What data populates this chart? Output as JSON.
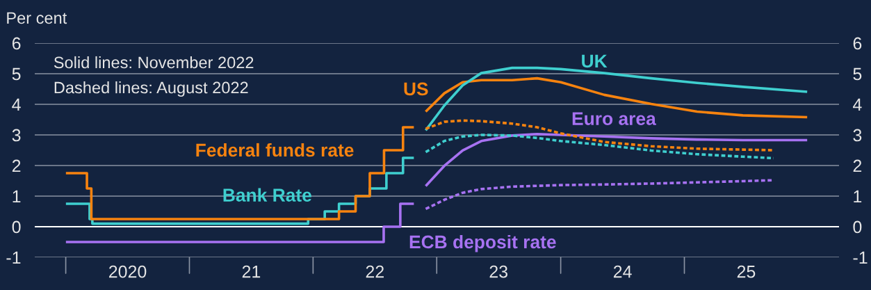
{
  "chart_data": {
    "type": "line",
    "ylabel": "Per cent",
    "annotations": [
      "Solid lines: November 2022",
      "Dashed lines: August 2022"
    ],
    "xlim": [
      "2019-10-01",
      "2026-04-01"
    ],
    "ylim": [
      -1,
      6
    ],
    "y2lim": [
      -1,
      6
    ],
    "xticks": [
      {
        "value": "2020-07-01",
        "label": "2020"
      },
      {
        "value": "2021-07-01",
        "label": "21"
      },
      {
        "value": "2022-07-01",
        "label": "22"
      },
      {
        "value": "2023-07-01",
        "label": "23"
      },
      {
        "value": "2024-07-01",
        "label": "24"
      },
      {
        "value": "2025-07-01",
        "label": "25"
      }
    ],
    "yticks": [
      -1,
      0,
      1,
      2,
      3,
      4,
      5,
      6
    ],
    "y2ticks": [
      -1,
      0,
      1,
      2,
      3,
      4,
      5,
      6
    ],
    "grid": "y",
    "legend": false,
    "ref_lines": [
      {
        "axis": "y",
        "value": 0,
        "color": "#ffffff"
      }
    ],
    "series": [
      {
        "name": "Bank Rate",
        "type": "step",
        "color": "#3fcfcf",
        "line_style": "solid",
        "x": [
          "2020-01-01",
          "2020-03-11",
          "2020-03-19",
          "2021-12-16",
          "2022-02-03",
          "2022-03-17",
          "2022-05-05",
          "2022-06-16",
          "2022-08-04",
          "2022-09-22",
          "2022-10-24"
        ],
        "values": [
          0.75,
          0.25,
          0.1,
          0.25,
          0.5,
          0.75,
          1.0,
          1.25,
          1.75,
          2.25,
          2.25
        ]
      },
      {
        "name": "Federal funds rate",
        "type": "step",
        "color": "#f7830f",
        "line_style": "solid",
        "x": [
          "2020-01-01",
          "2020-03-03",
          "2020-03-16",
          "2022-03-17",
          "2022-05-05",
          "2022-06-16",
          "2022-07-28",
          "2022-09-22",
          "2022-10-24"
        ],
        "values": [
          1.75,
          1.25,
          0.25,
          0.5,
          1.0,
          1.75,
          2.5,
          3.25,
          3.25
        ]
      },
      {
        "name": "ECB deposit rate",
        "type": "step",
        "color": "#a772f2",
        "line_style": "solid",
        "x": [
          "2020-01-01",
          "2022-07-27",
          "2022-09-14",
          "2022-10-24"
        ],
        "values": [
          -0.5,
          0.0,
          0.75,
          0.75
        ]
      },
      {
        "name": "US",
        "color": "#f7830f",
        "line_style": "solid",
        "x": [
          "2022-11-28",
          "2023-01-22",
          "2023-03-17",
          "2023-05-11",
          "2023-08-10",
          "2023-10-23",
          "2024-01-01",
          "2024-05-08",
          "2024-09-24",
          "2025-02-06",
          "2025-06-21",
          "2025-12-28"
        ],
        "values": [
          3.76,
          4.36,
          4.72,
          4.79,
          4.79,
          4.85,
          4.72,
          4.31,
          4.01,
          3.76,
          3.64,
          3.58
        ]
      },
      {
        "name": "UK",
        "color": "#3fcfcf",
        "line_style": "solid",
        "x": [
          "2022-11-28",
          "2023-01-22",
          "2023-03-17",
          "2023-05-11",
          "2023-08-10",
          "2023-10-23",
          "2024-01-01",
          "2024-05-08",
          "2024-09-24",
          "2025-02-06",
          "2025-06-21",
          "2025-12-28"
        ],
        "values": [
          3.15,
          3.96,
          4.62,
          5.02,
          5.19,
          5.19,
          5.15,
          5.02,
          4.85,
          4.7,
          4.57,
          4.41
        ]
      },
      {
        "name": "Euro area",
        "color": "#a772f2",
        "line_style": "solid",
        "x": [
          "2022-11-28",
          "2023-01-22",
          "2023-03-17",
          "2023-05-11",
          "2023-08-10",
          "2023-10-23",
          "2024-01-01",
          "2024-05-08",
          "2024-09-24",
          "2025-02-06",
          "2025-06-21",
          "2025-12-28"
        ],
        "values": [
          1.33,
          1.99,
          2.49,
          2.8,
          2.98,
          3.03,
          3.0,
          2.95,
          2.89,
          2.85,
          2.83,
          2.83
        ]
      },
      {
        "color": "#f7830f",
        "line_style": "dashed",
        "x": [
          "2022-11-28",
          "2023-01-22",
          "2023-03-17",
          "2023-05-11",
          "2023-08-10",
          "2023-10-23",
          "2024-01-01",
          "2024-05-08",
          "2024-09-24",
          "2025-02-06",
          "2025-06-21",
          "2025-09-20"
        ],
        "values": [
          3.2,
          3.43,
          3.47,
          3.45,
          3.37,
          3.25,
          3.05,
          2.77,
          2.63,
          2.55,
          2.52,
          2.5
        ]
      },
      {
        "color": "#3fcfcf",
        "line_style": "dashed",
        "x": [
          "2022-11-28",
          "2023-01-22",
          "2023-03-17",
          "2023-05-11",
          "2023-08-10",
          "2023-10-23",
          "2024-01-01",
          "2024-05-08",
          "2024-09-24",
          "2025-02-06",
          "2025-06-21",
          "2025-09-20"
        ],
        "values": [
          2.44,
          2.8,
          2.95,
          3.0,
          2.98,
          2.9,
          2.8,
          2.67,
          2.49,
          2.37,
          2.29,
          2.24
        ]
      },
      {
        "color": "#a772f2",
        "line_style": "dashed",
        "x": [
          "2022-11-28",
          "2023-01-22",
          "2023-03-17",
          "2023-05-11",
          "2023-08-10",
          "2024-01-01",
          "2024-05-08",
          "2024-09-24",
          "2025-02-06",
          "2025-06-21",
          "2025-09-20"
        ],
        "values": [
          0.58,
          0.88,
          1.11,
          1.23,
          1.31,
          1.36,
          1.38,
          1.41,
          1.45,
          1.49,
          1.52
        ]
      }
    ]
  }
}
